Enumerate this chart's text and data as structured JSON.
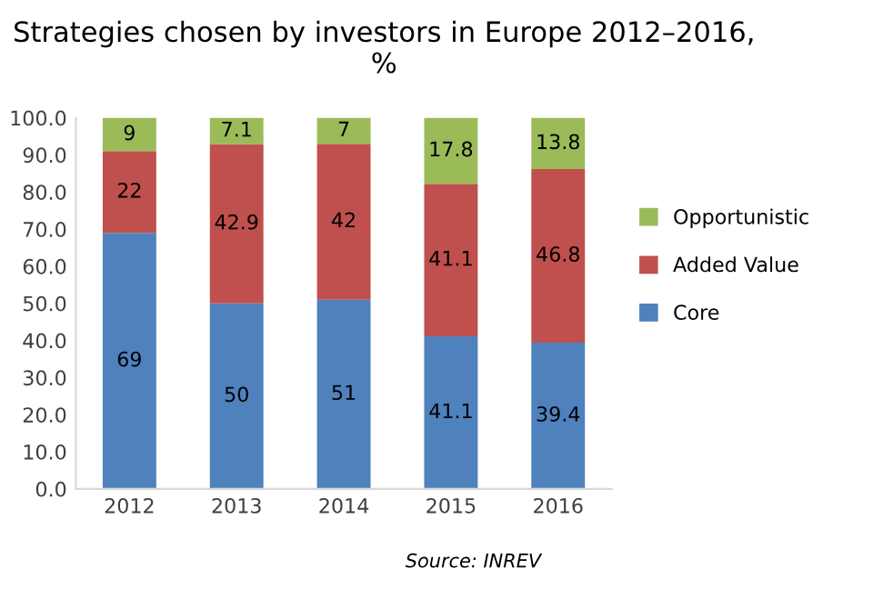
{
  "chart_data": {
    "type": "bar",
    "stacked": true,
    "title": "Strategies chosen by investors in Europe 2012–2016, %",
    "categories": [
      "2012",
      "2013",
      "2014",
      "2015",
      "2016"
    ],
    "series": [
      {
        "name": "Core",
        "color": "#4f81bd",
        "values": [
          69,
          50,
          51,
          41.1,
          39.4
        ]
      },
      {
        "name": "Added Value",
        "color": "#c0504d",
        "values": [
          22,
          42.9,
          42,
          41.1,
          46.8
        ]
      },
      {
        "name": "Opportunistic",
        "color": "#9bbb59",
        "values": [
          9,
          7.1,
          7,
          17.8,
          13.8
        ]
      }
    ],
    "ylim": [
      0,
      100
    ],
    "yticks": [
      {
        "value": 0,
        "label": "0.0"
      },
      {
        "value": 10,
        "label": "10.0"
      },
      {
        "value": 20,
        "label": "20.0"
      },
      {
        "value": 30,
        "label": "30.0"
      },
      {
        "value": 40,
        "label": "40.0"
      },
      {
        "value": 50,
        "label": "50.0"
      },
      {
        "value": 60,
        "label": "60.0"
      },
      {
        "value": 70,
        "label": "70.0"
      },
      {
        "value": 80,
        "label": "80.0"
      },
      {
        "value": 90,
        "label": "90.0"
      },
      {
        "value": 100,
        "label": "100.0"
      }
    ],
    "data_labels": true,
    "legend": "right",
    "grid": false,
    "annotations": [
      "Source: INREV"
    ]
  }
}
